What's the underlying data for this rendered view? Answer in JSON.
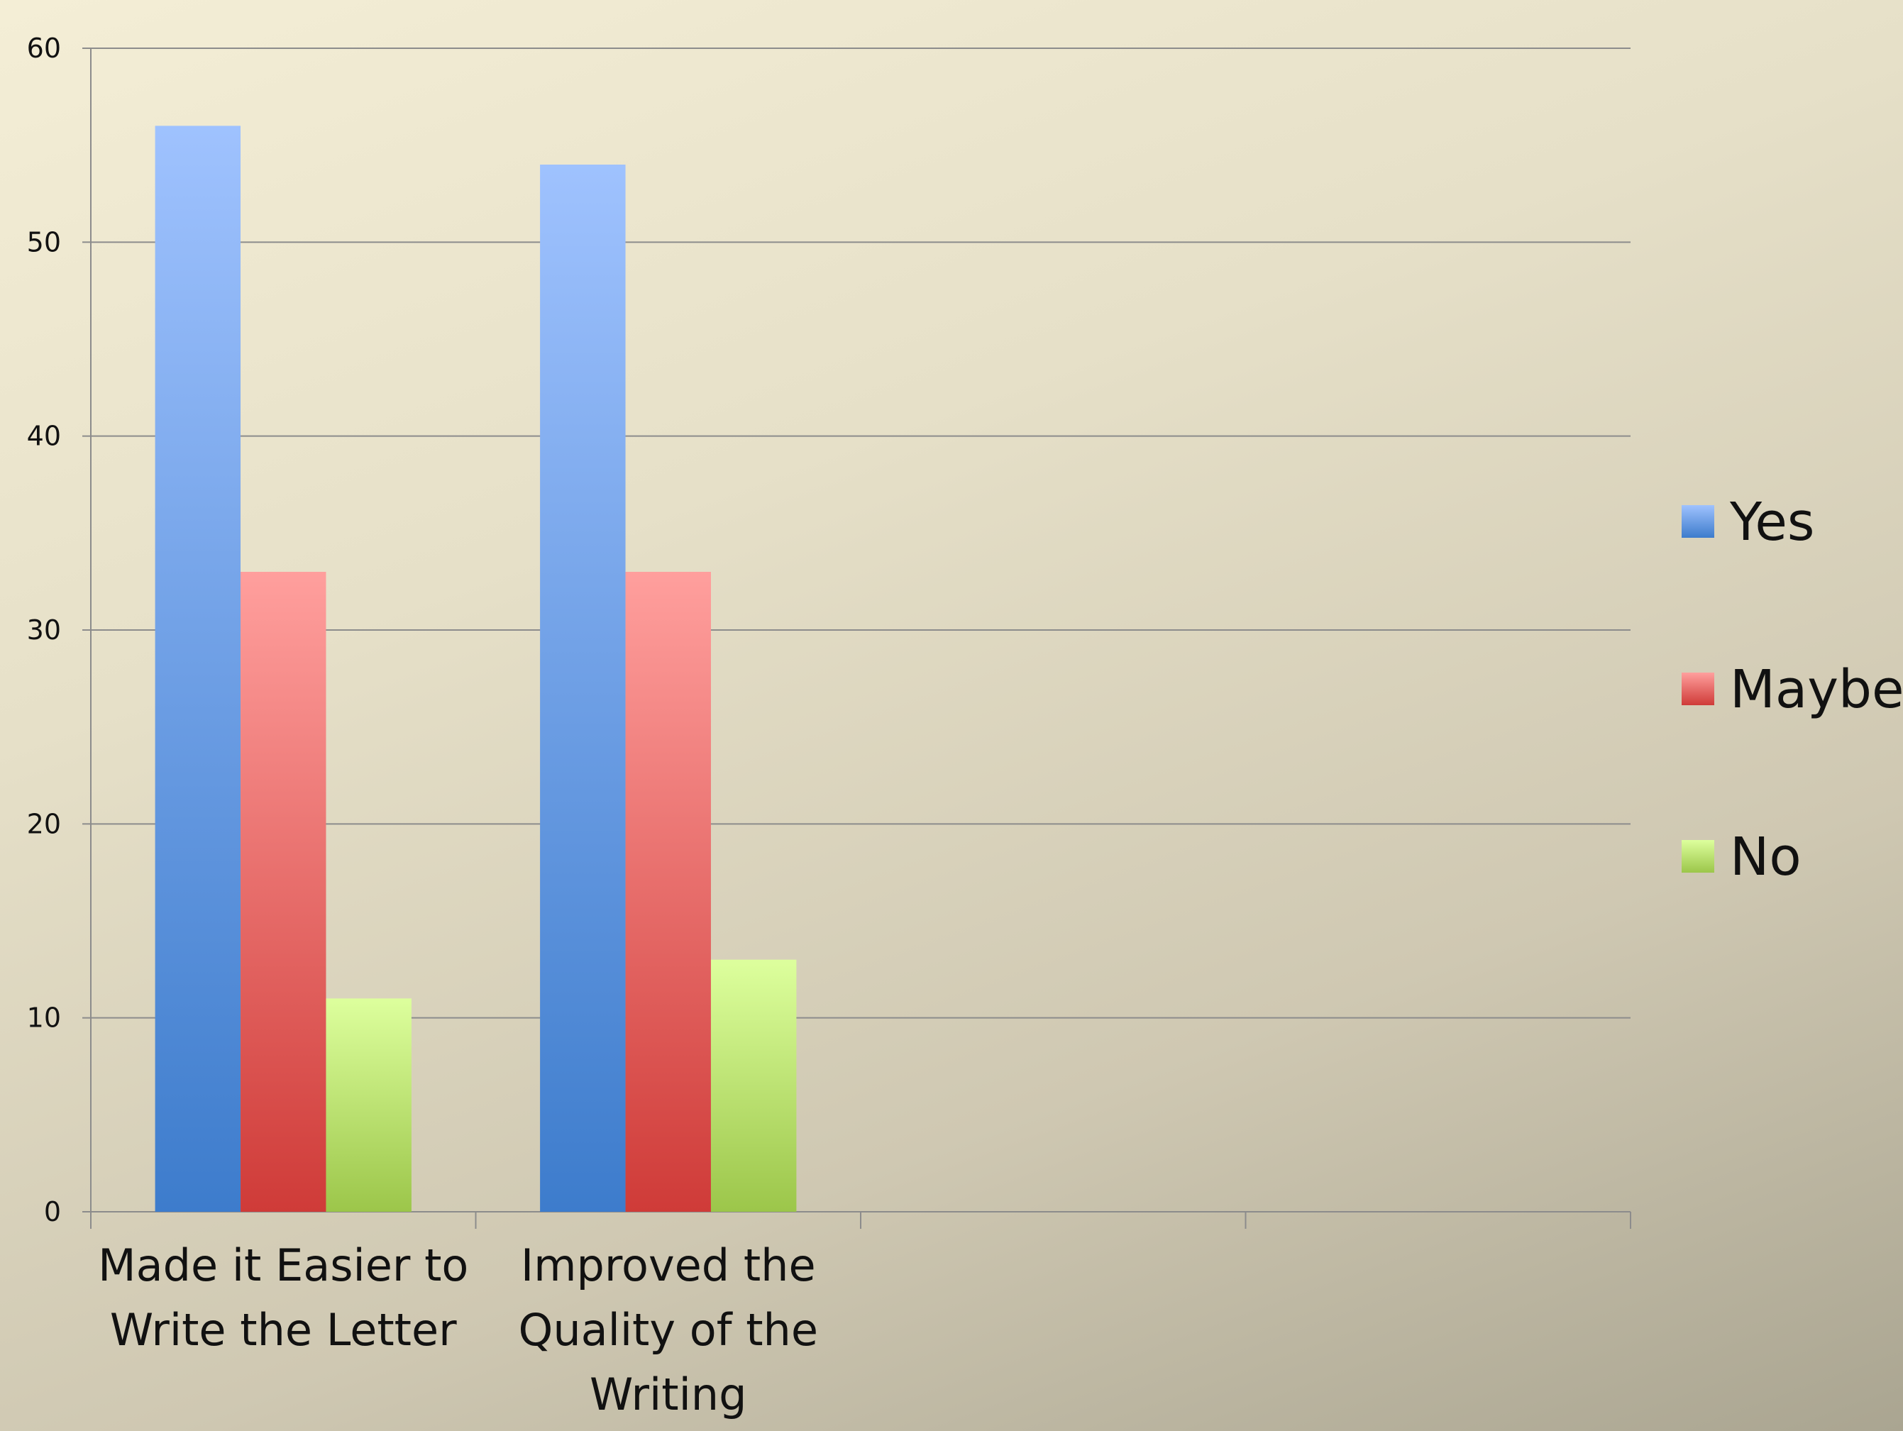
{
  "chart_data": {
    "type": "bar",
    "title": "",
    "xlabel": "",
    "ylabel": "",
    "ylim": [
      0,
      60
    ],
    "yticks": [
      0,
      10,
      20,
      30,
      40,
      50,
      60
    ],
    "category_slots": 4,
    "categories": [
      [
        "Made it Easier to",
        "Write the Letter"
      ],
      [
        "Improved the",
        "Quality of the",
        "Writing"
      ]
    ],
    "series": [
      {
        "name": "Yes",
        "values": [
          56,
          54
        ],
        "color_top": "#9fc2fe",
        "color_bottom": "#3d7ccc"
      },
      {
        "name": "Maybe",
        "values": [
          33,
          33
        ],
        "color_top": "#ff9f9d",
        "color_bottom": "#cf3b38"
      },
      {
        "name": "No",
        "values": [
          11,
          13
        ],
        "color_top": "#ddff9d",
        "color_bottom": "#9cc64a"
      }
    ],
    "grid": true,
    "legend_position": "right"
  }
}
